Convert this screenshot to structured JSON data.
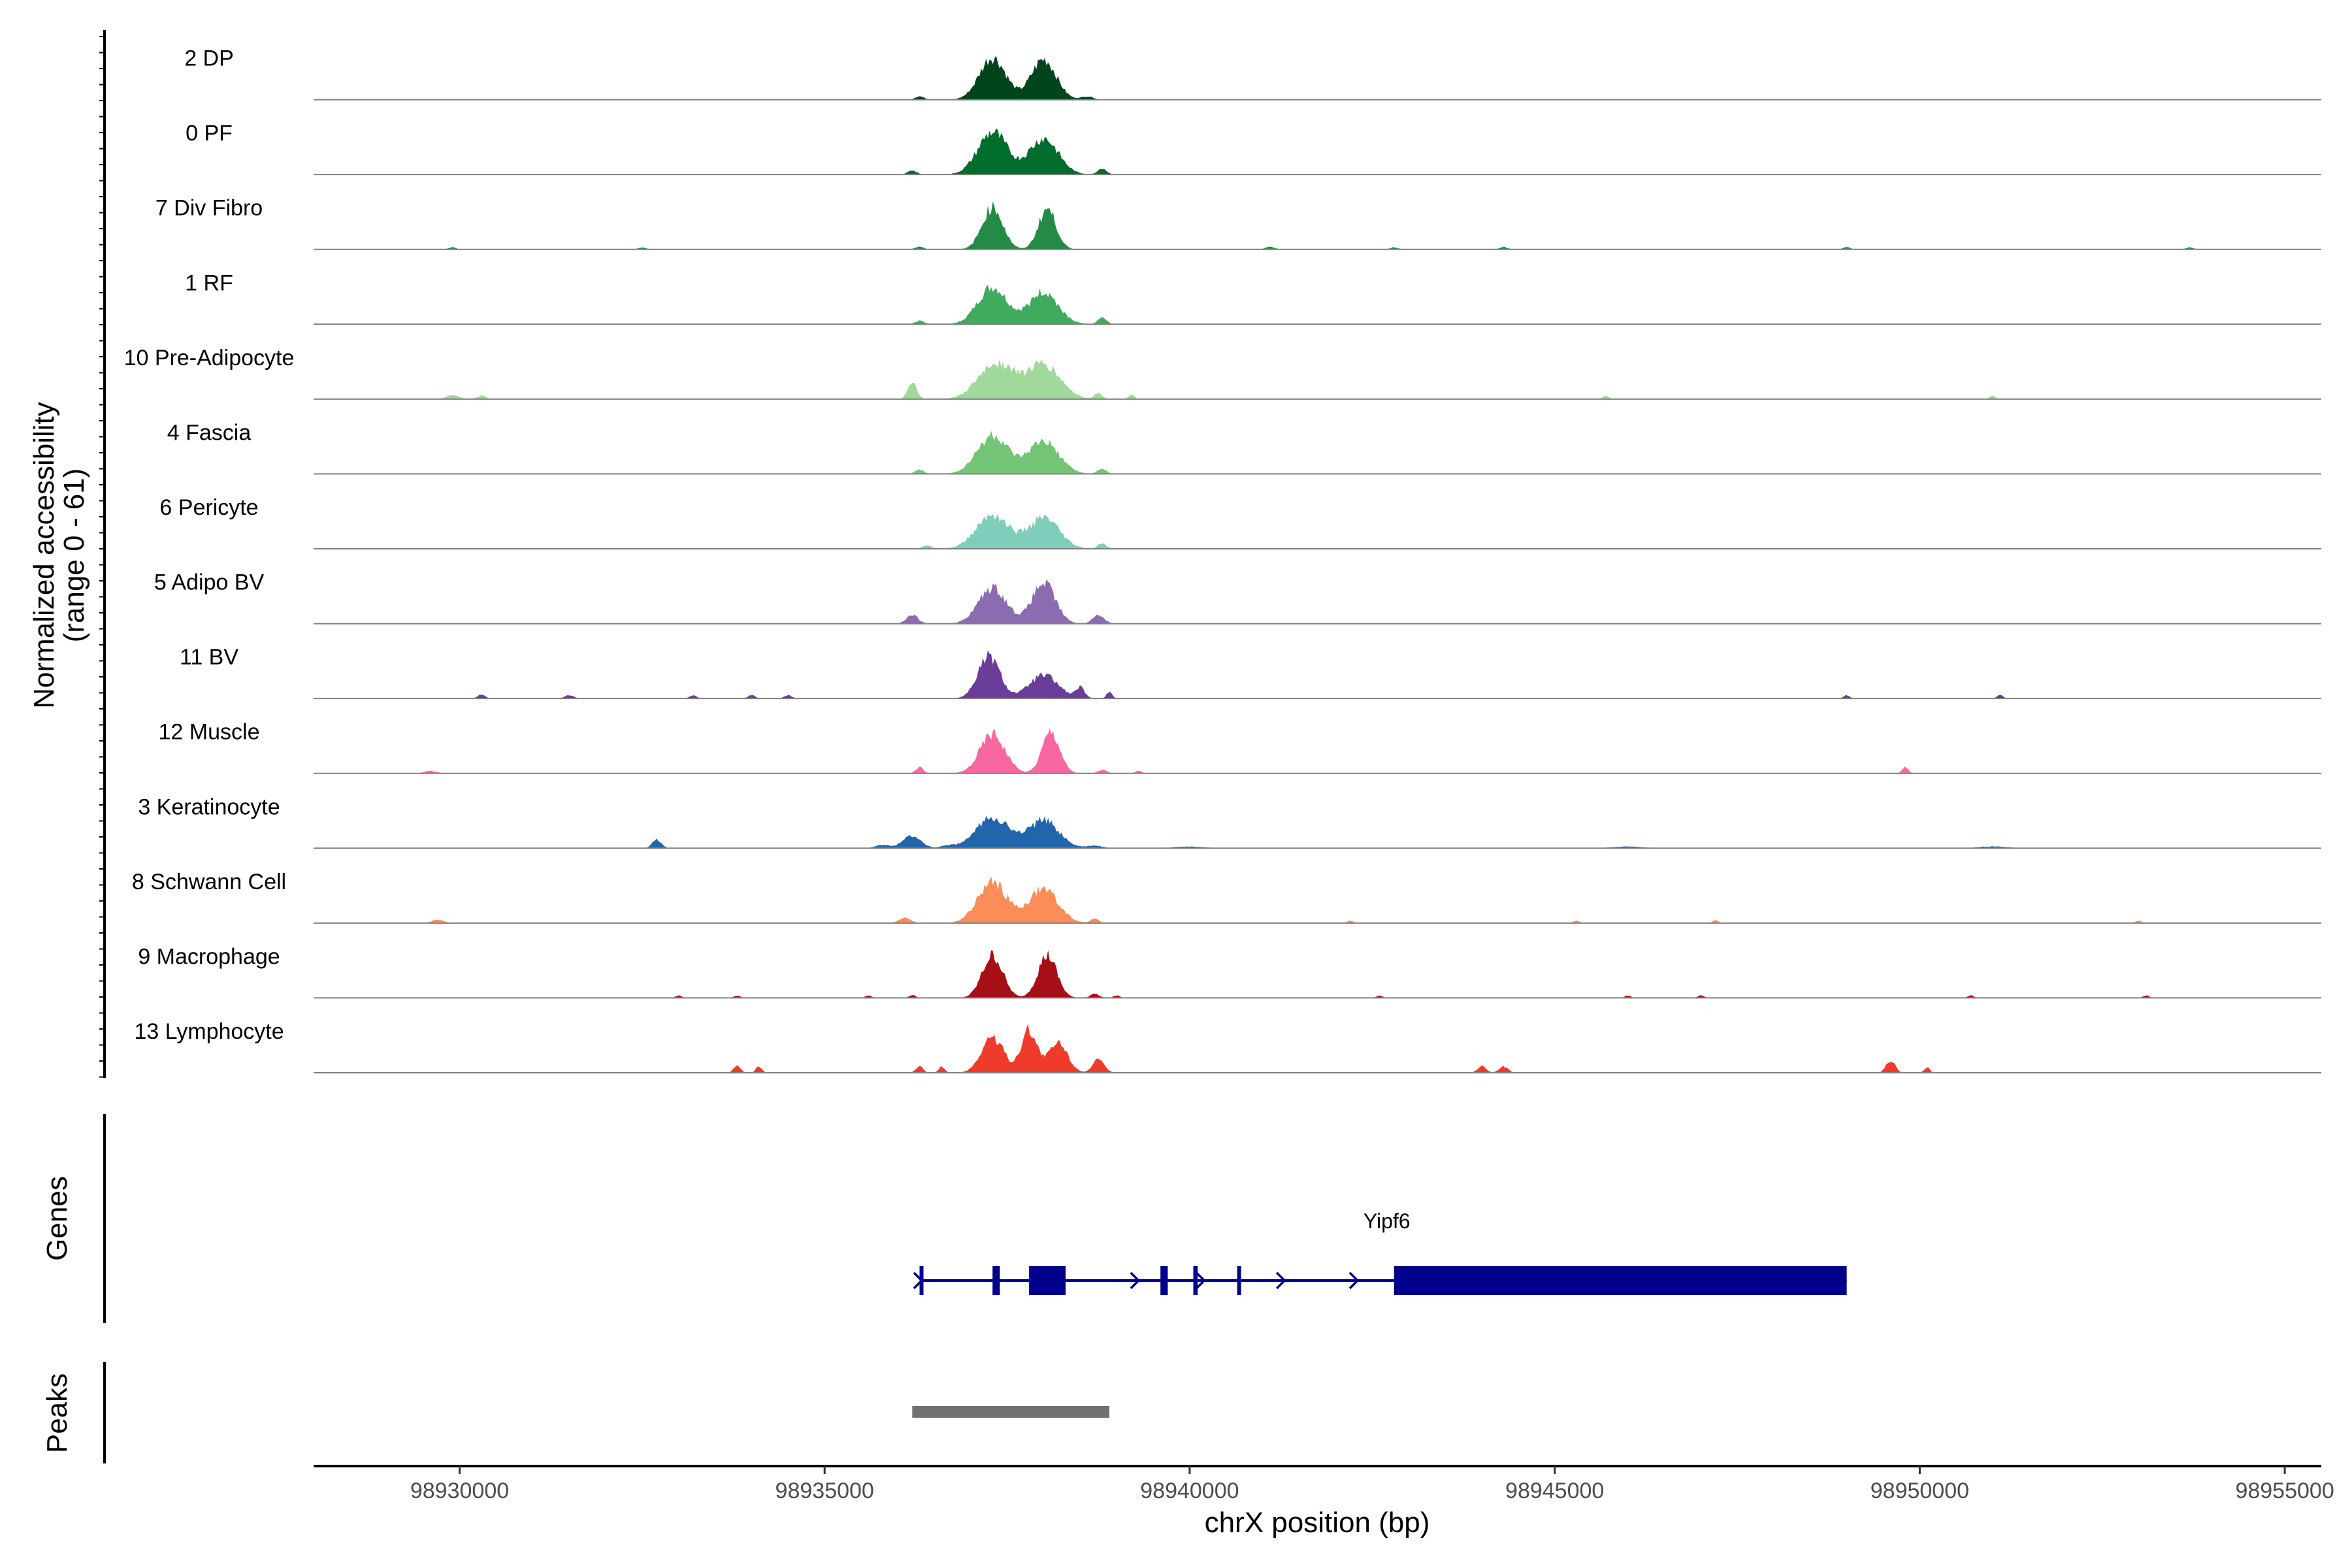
{
  "chart_data": {
    "type": "area",
    "title": "",
    "xlabel": "chrX position (bp)",
    "ylabel": "Normalized accessibility",
    "ylabel_range": "(range 0 - 61)",
    "xlim": [
      98928000,
      98955500
    ],
    "ylim": [
      0,
      61
    ],
    "x_ticks": [
      98930000,
      98935000,
      98940000,
      98945000,
      98950000,
      98955000
    ],
    "x_tick_labels": [
      "98930000",
      "98935000",
      "98940000",
      "98945000",
      "98950000",
      "98955000"
    ],
    "tracks": [
      {
        "name": "2 DP",
        "color": "#00441b",
        "peaks": [
          [
            98937300,
            1.0,
            180
          ],
          [
            98938000,
            0.95,
            170
          ]
        ],
        "small": [
          [
            98936300,
            0.08,
            60
          ],
          [
            98938600,
            0.08,
            80
          ]
        ]
      },
      {
        "name": "0 PF",
        "color": "#006d2c",
        "peaks": [
          [
            98937300,
            1.0,
            200
          ],
          [
            98938000,
            0.85,
            200
          ]
        ],
        "small": [
          [
            98936200,
            0.1,
            60
          ],
          [
            98938800,
            0.15,
            60
          ]
        ]
      },
      {
        "name": "7 Div Fibro",
        "color": "#238b45",
        "peaks": [
          [
            98937300,
            1.0,
            140
          ],
          [
            98938050,
            0.95,
            120
          ]
        ],
        "small": [
          [
            98929900,
            0.05,
            50
          ],
          [
            98932500,
            0.05,
            50
          ],
          [
            98936300,
            0.06,
            60
          ],
          [
            98941100,
            0.06,
            60
          ],
          [
            98942800,
            0.05,
            50
          ],
          [
            98944300,
            0.06,
            50
          ],
          [
            98949000,
            0.05,
            50
          ],
          [
            98953700,
            0.05,
            50
          ]
        ]
      },
      {
        "name": "1 RF",
        "color": "#41ab5d",
        "peaks": [
          [
            98937300,
            0.85,
            200
          ],
          [
            98938000,
            0.75,
            200
          ]
        ],
        "small": [
          [
            98936300,
            0.08,
            60
          ],
          [
            98938800,
            0.15,
            60
          ]
        ]
      },
      {
        "name": "10 Pre-Adipocyte",
        "color": "#a1d99b",
        "peaks": [
          [
            98937350,
            0.85,
            240
          ],
          [
            98938000,
            0.8,
            230
          ]
        ],
        "small": [
          [
            98929900,
            0.1,
            80
          ],
          [
            98930300,
            0.08,
            60
          ],
          [
            98936200,
            0.4,
            60
          ],
          [
            98938750,
            0.15,
            50
          ],
          [
            98939200,
            0.1,
            40
          ],
          [
            98945700,
            0.08,
            40
          ],
          [
            98951000,
            0.08,
            40
          ]
        ]
      },
      {
        "name": "4 Fascia",
        "color": "#74c476",
        "peaks": [
          [
            98937300,
            0.9,
            210
          ],
          [
            98938000,
            0.75,
            210
          ]
        ],
        "small": [
          [
            98936300,
            0.1,
            60
          ],
          [
            98938800,
            0.12,
            60
          ]
        ]
      },
      {
        "name": "6 Pericyte",
        "color": "#7fcdbb",
        "peaks": [
          [
            98937300,
            0.8,
            220
          ],
          [
            98938000,
            0.72,
            210
          ]
        ],
        "small": [
          [
            98936400,
            0.08,
            60
          ],
          [
            98938800,
            0.12,
            60
          ]
        ]
      },
      {
        "name": "5 Adipo BV",
        "color": "#8c6bb1",
        "peaks": [
          [
            98937300,
            0.85,
            190
          ],
          [
            98938000,
            0.95,
            160
          ]
        ],
        "small": [
          [
            98936200,
            0.2,
            80
          ],
          [
            98938750,
            0.2,
            80
          ]
        ]
      },
      {
        "name": "11 BV",
        "color": "#6a3d9a",
        "peaks": [
          [
            98937250,
            1.0,
            150
          ],
          [
            98938000,
            0.55,
            200
          ]
        ],
        "small": [
          [
            98930300,
            0.1,
            50
          ],
          [
            98931500,
            0.08,
            60
          ],
          [
            98933200,
            0.07,
            50
          ],
          [
            98934000,
            0.08,
            50
          ],
          [
            98934500,
            0.08,
            50
          ],
          [
            98938500,
            0.25,
            60
          ],
          [
            98938900,
            0.15,
            40
          ],
          [
            98949000,
            0.08,
            40
          ],
          [
            98951100,
            0.08,
            40
          ]
        ]
      },
      {
        "name": "12 Muscle",
        "color": "#f768a1",
        "peaks": [
          [
            98937300,
            0.95,
            170
          ],
          [
            98938100,
            1.0,
            120
          ]
        ],
        "small": [
          [
            98929600,
            0.06,
            80
          ],
          [
            98936300,
            0.15,
            50
          ],
          [
            98938800,
            0.08,
            60
          ],
          [
            98939300,
            0.06,
            40
          ],
          [
            98949800,
            0.15,
            40
          ]
        ]
      },
      {
        "name": "3 Keratinocyte",
        "color": "#2166ac",
        "peaks": [
          [
            98937300,
            0.75,
            220
          ],
          [
            98938000,
            0.65,
            210
          ],
          [
            98936200,
            0.3,
            120
          ]
        ],
        "small": [
          [
            98932700,
            0.2,
            60
          ],
          [
            98935800,
            0.08,
            100
          ],
          [
            98936700,
            0.06,
            100
          ],
          [
            98938700,
            0.06,
            100
          ],
          [
            98940000,
            0.04,
            200
          ],
          [
            98946000,
            0.04,
            200
          ],
          [
            98951000,
            0.04,
            200
          ]
        ]
      },
      {
        "name": "8 Schwann Cell",
        "color": "#fc8d59",
        "peaks": [
          [
            98937300,
            0.95,
            200
          ],
          [
            98938000,
            0.8,
            200
          ]
        ],
        "small": [
          [
            98929700,
            0.08,
            80
          ],
          [
            98936100,
            0.12,
            80
          ],
          [
            98938700,
            0.12,
            50
          ],
          [
            98942200,
            0.06,
            40
          ],
          [
            98945300,
            0.06,
            40
          ],
          [
            98947200,
            0.06,
            40
          ],
          [
            98953000,
            0.06,
            40
          ]
        ]
      },
      {
        "name": "9 Macrophage",
        "color": "#a50f15",
        "peaks": [
          [
            98937300,
            1.0,
            140
          ],
          [
            98938050,
            1.0,
            130
          ]
        ],
        "small": [
          [
            98933000,
            0.06,
            40
          ],
          [
            98933800,
            0.06,
            40
          ],
          [
            98935600,
            0.06,
            40
          ],
          [
            98936200,
            0.07,
            40
          ],
          [
            98938700,
            0.1,
            60
          ],
          [
            98939000,
            0.06,
            40
          ],
          [
            98942600,
            0.06,
            40
          ],
          [
            98946000,
            0.06,
            40
          ],
          [
            98947000,
            0.06,
            40
          ],
          [
            98950700,
            0.06,
            40
          ],
          [
            98953100,
            0.06,
            40
          ]
        ]
      },
      {
        "name": "13 Lymphocyte",
        "color": "#ef3b2c",
        "peaks": [
          [
            98937300,
            0.85,
            150
          ],
          [
            98937800,
            1.0,
            110
          ],
          [
            98938200,
            0.7,
            130
          ]
        ],
        "small": [
          [
            98933800,
            0.15,
            50
          ],
          [
            98934100,
            0.15,
            40
          ],
          [
            98936300,
            0.15,
            50
          ],
          [
            98936600,
            0.15,
            40
          ],
          [
            98938750,
            0.3,
            80
          ],
          [
            98944000,
            0.15,
            60
          ],
          [
            98944300,
            0.15,
            60
          ],
          [
            98949600,
            0.3,
            60
          ],
          [
            98950100,
            0.12,
            40
          ]
        ]
      }
    ],
    "genes": {
      "title": "Genes",
      "color": "#00008b",
      "name": "Yipf6",
      "start": 98936300,
      "end": 98949000,
      "exons": [
        [
          98936300,
          98936340
        ],
        [
          98937300,
          98937400
        ],
        [
          98937800,
          98938300
        ],
        [
          98939600,
          98939700
        ],
        [
          98940050,
          98940110
        ],
        [
          98940650,
          98940670
        ],
        [
          98942800,
          98949000
        ]
      ],
      "arrows": [
        98936330,
        98939300,
        98940200,
        98941300,
        98942300
      ]
    },
    "peaks_track": {
      "title": "Peaks",
      "color": "#707070",
      "regions": [
        [
          98936200,
          98938900
        ]
      ]
    }
  }
}
